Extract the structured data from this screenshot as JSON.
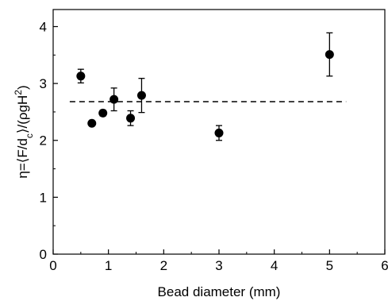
{
  "chart_data": {
    "type": "scatter",
    "title": "",
    "xlabel": "Bead diameter (mm)",
    "ylabel": {
      "prefix": "η=⟨F/d",
      "sub": "c",
      "middle": "⟩/(ρgH",
      "sup": "2",
      "suffix": ")"
    },
    "xlim": [
      0,
      6
    ],
    "ylim": [
      0,
      4.3
    ],
    "x_ticks": [
      0,
      1,
      2,
      3,
      4,
      5,
      6
    ],
    "y_ticks": [
      0,
      1,
      2,
      3,
      4
    ],
    "grid": false,
    "legend": "none",
    "marker_color": "#000000",
    "series": [
      {
        "points": [
          {
            "x": 0.5,
            "y": 3.13,
            "err": 0.12
          },
          {
            "x": 0.7,
            "y": 2.3,
            "err": 0.0
          },
          {
            "x": 0.9,
            "y": 2.48,
            "err": 0.05
          },
          {
            "x": 1.1,
            "y": 2.72,
            "err": 0.2
          },
          {
            "x": 1.4,
            "y": 2.39,
            "err": 0.13
          },
          {
            "x": 1.6,
            "y": 2.79,
            "err": 0.3
          },
          {
            "x": 3.0,
            "y": 2.13,
            "err": 0.13
          },
          {
            "x": 5.0,
            "y": 3.51,
            "err": 0.38
          }
        ]
      }
    ],
    "reference_line": {
      "style": "dashed",
      "y": 2.68,
      "x_start": 0.3,
      "x_end": 5.3
    }
  }
}
